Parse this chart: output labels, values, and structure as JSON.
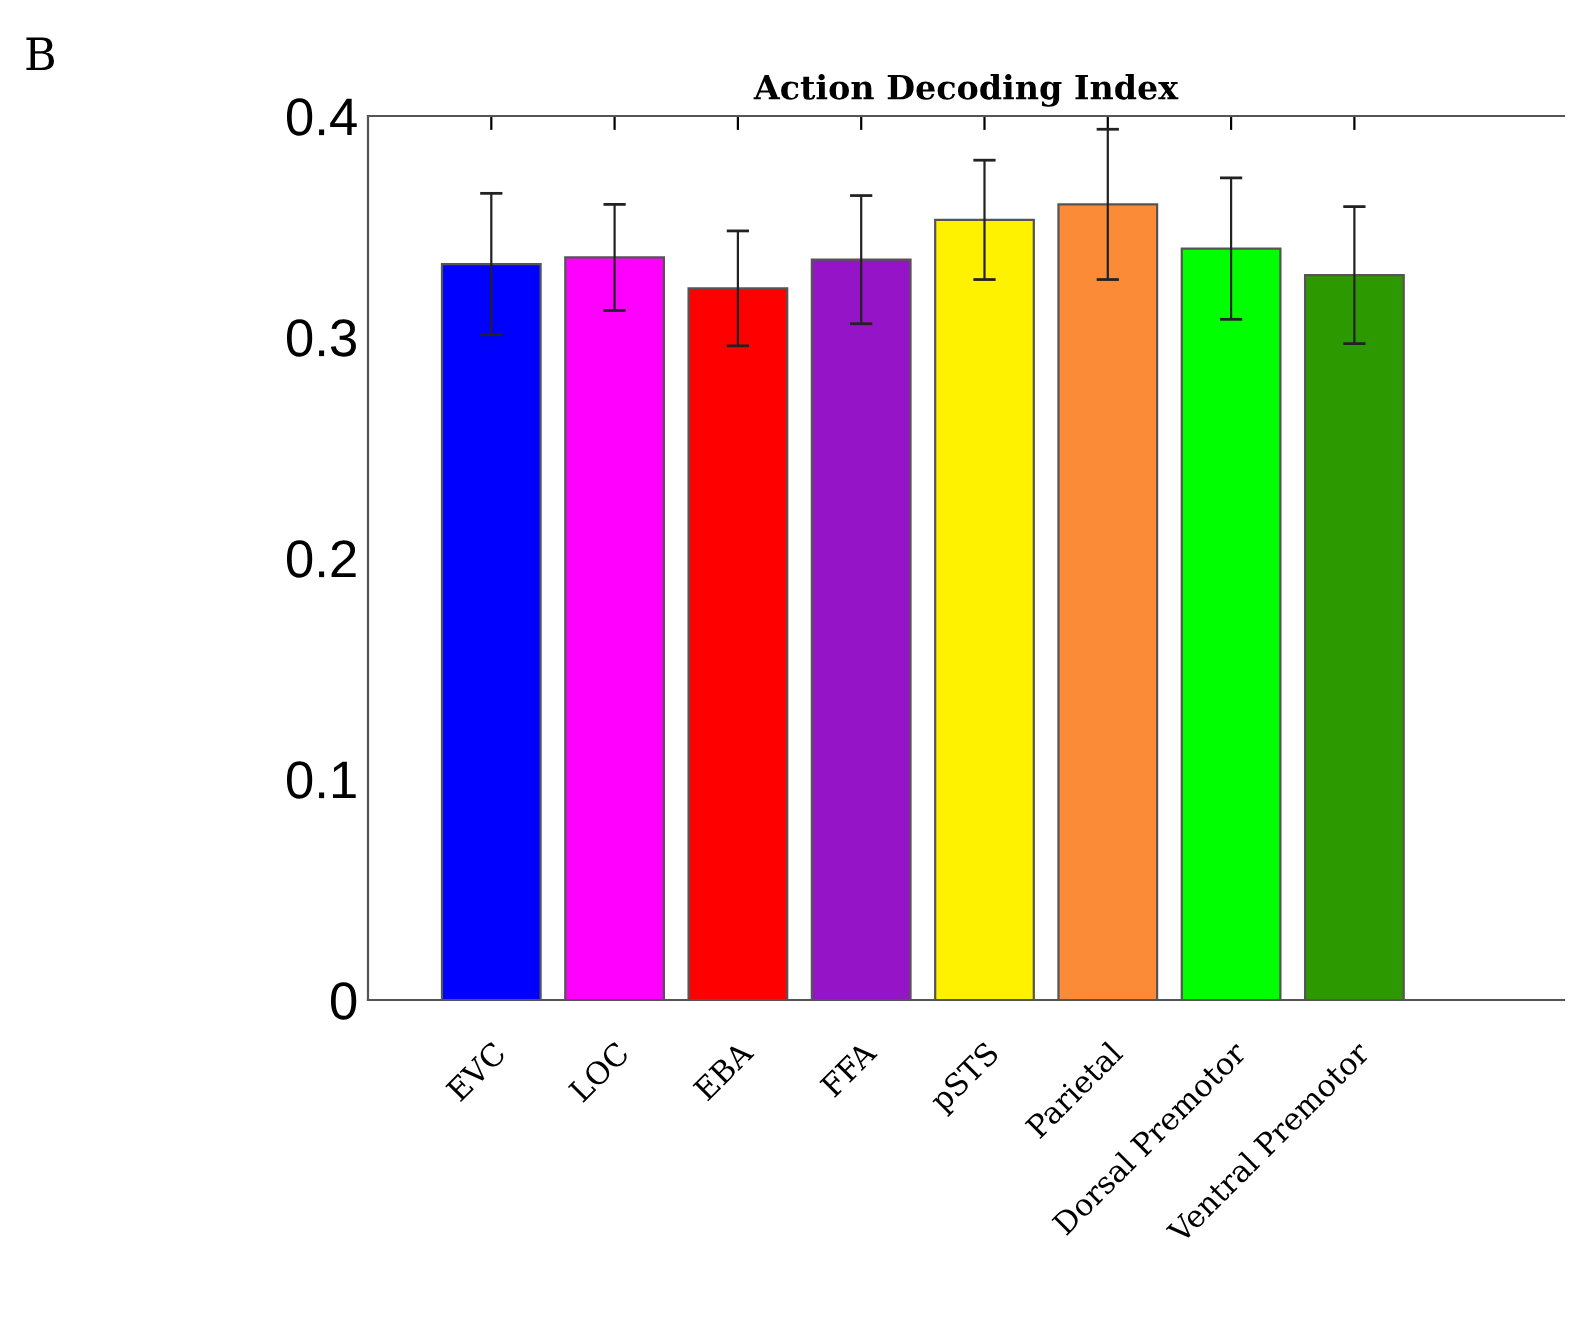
{
  "chart_data": {
    "type": "bar",
    "title": "Action Decoding Index",
    "annotations": [
      "B"
    ],
    "categories": [
      "EVC",
      "LOC",
      "EBA",
      "FFA",
      "pSTS",
      "Parietal",
      "Dorsal Premotor",
      "Ventral Premotor"
    ],
    "values": [
      0.333,
      0.336,
      0.322,
      0.335,
      0.353,
      0.36,
      0.34,
      0.328
    ],
    "errors": [
      0.032,
      0.024,
      0.026,
      0.029,
      0.027,
      0.034,
      0.032,
      0.031
    ],
    "colors": [
      "#0000ff",
      "#ff00ff",
      "#ff0000",
      "#9614c8",
      "#fff200",
      "#fb8b37",
      "#00ff00",
      "#2d9900"
    ],
    "ylim": [
      0,
      0.4
    ],
    "yticks": [
      0,
      0.1,
      0.2,
      0.3,
      0.4
    ],
    "grid": false
  }
}
